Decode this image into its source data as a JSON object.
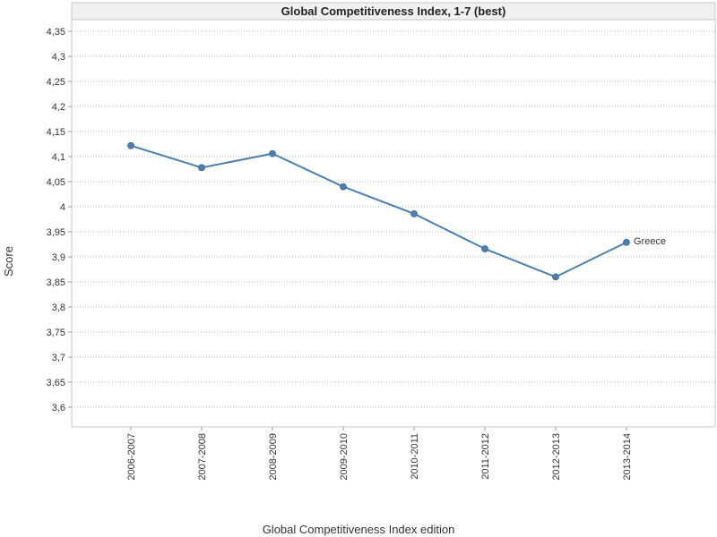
{
  "chart_data": {
    "type": "line",
    "title": "Global Competitiveness Index, 1-7 (best)",
    "xlabel": "Global Competitiveness Index edition",
    "ylabel": "Score",
    "categories": [
      "2006-2007",
      "2007-2008",
      "2008-2009",
      "2009-2010",
      "2010-2011",
      "2011-2012",
      "2012-2013",
      "2013-2014"
    ],
    "series": [
      {
        "name": "Greece",
        "values": [
          4.122,
          4.078,
          4.106,
          4.04,
          3.986,
          3.916,
          3.86,
          3.929
        ],
        "color": "#4a7fb0"
      }
    ],
    "ylim": [
      3.55,
      4.38
    ],
    "yticks": [
      3.6,
      3.65,
      3.7,
      3.75,
      3.8,
      3.85,
      3.9,
      3.95,
      4,
      4.05,
      4.1,
      4.15,
      4.2,
      4.25,
      4.3,
      4.35
    ],
    "ytick_labels": [
      "3,6",
      "3,65",
      "3,7",
      "3,75",
      "3,8",
      "3,85",
      "3,9",
      "3,95",
      "4",
      "4,05",
      "4,1",
      "4,15",
      "4,2",
      "4,25",
      "4,3",
      "4,35"
    ],
    "grid": "horizontal",
    "legend": "series label at end of line"
  }
}
